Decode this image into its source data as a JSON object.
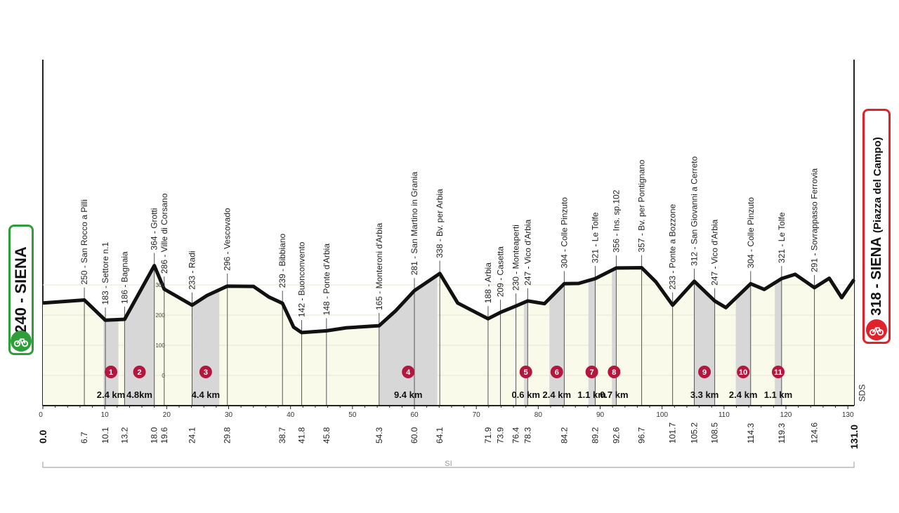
{
  "start": {
    "label": "240 - SIENA"
  },
  "finish": {
    "label": "318 - SIENA",
    "sub": "(Piazza del Campo)"
  },
  "footer": {
    "label": "SI",
    "sds": "SDS"
  },
  "chart_data": {
    "type": "area",
    "xlabel": "",
    "ylabel": "",
    "xlim": [
      0,
      131
    ],
    "x_ticks": [
      0,
      10,
      20,
      30,
      40,
      50,
      60,
      70,
      80,
      90,
      100,
      110,
      120,
      130
    ],
    "y_ticks": [
      0,
      100,
      200,
      300
    ],
    "total_km": "131.0",
    "start_km": "0.0",
    "points": [
      {
        "km": 0,
        "alt": 240
      },
      {
        "km": 6.7,
        "alt": 250
      },
      {
        "km": 10.1,
        "alt": 183
      },
      {
        "km": 13.2,
        "alt": 186
      },
      {
        "km": 18,
        "alt": 364
      },
      {
        "km": 19.6,
        "alt": 286
      },
      {
        "km": 24.1,
        "alt": 233
      },
      {
        "km": 26.5,
        "alt": 265
      },
      {
        "km": 29.8,
        "alt": 296
      },
      {
        "km": 34,
        "alt": 295
      },
      {
        "km": 36.5,
        "alt": 260
      },
      {
        "km": 38.7,
        "alt": 239
      },
      {
        "km": 40.5,
        "alt": 160
      },
      {
        "km": 41.8,
        "alt": 142
      },
      {
        "km": 45.8,
        "alt": 148
      },
      {
        "km": 49,
        "alt": 158
      },
      {
        "km": 54.3,
        "alt": 165
      },
      {
        "km": 57,
        "alt": 215
      },
      {
        "km": 60,
        "alt": 281
      },
      {
        "km": 64.1,
        "alt": 338
      },
      {
        "km": 67,
        "alt": 240
      },
      {
        "km": 71.9,
        "alt": 188
      },
      {
        "km": 73.9,
        "alt": 209
      },
      {
        "km": 76.4,
        "alt": 230
      },
      {
        "km": 78.3,
        "alt": 247
      },
      {
        "km": 81,
        "alt": 238
      },
      {
        "km": 84.2,
        "alt": 304
      },
      {
        "km": 86.5,
        "alt": 305
      },
      {
        "km": 89.2,
        "alt": 321
      },
      {
        "km": 92.6,
        "alt": 356
      },
      {
        "km": 96.7,
        "alt": 357
      },
      {
        "km": 99,
        "alt": 310
      },
      {
        "km": 101.7,
        "alt": 233
      },
      {
        "km": 105.2,
        "alt": 312
      },
      {
        "km": 108.5,
        "alt": 247
      },
      {
        "km": 110.3,
        "alt": 225
      },
      {
        "km": 114.3,
        "alt": 304
      },
      {
        "km": 116.5,
        "alt": 285
      },
      {
        "km": 119.3,
        "alt": 321
      },
      {
        "km": 121.5,
        "alt": 335
      },
      {
        "km": 124.6,
        "alt": 291
      },
      {
        "km": 127,
        "alt": 322
      },
      {
        "km": 129,
        "alt": 258
      },
      {
        "km": 131,
        "alt": 318
      }
    ],
    "waypoints": [
      {
        "km": 6.7,
        "km_label": "6.7",
        "text": "250 - San Rocco a Pilli"
      },
      {
        "km": 10.1,
        "km_label": "10.1",
        "text": "183 - Settore n.1"
      },
      {
        "km": 13.2,
        "km_label": "13.2",
        "text": "186 - Bagnaia"
      },
      {
        "km": 18.0,
        "km_label": "18.0",
        "text": "364 - Grotti"
      },
      {
        "km": 19.6,
        "km_label": "19.6",
        "text": "286 - Ville di Corsano"
      },
      {
        "km": 24.1,
        "km_label": "24.1",
        "text": "233 - Radi"
      },
      {
        "km": 29.8,
        "km_label": "29.8",
        "text": "296 - Vescovado"
      },
      {
        "km": 38.7,
        "km_label": "38.7",
        "text": "239 - Bibbiano"
      },
      {
        "km": 41.8,
        "km_label": "41.8",
        "text": "142 - Buonconvento"
      },
      {
        "km": 45.8,
        "km_label": "45.8",
        "text": "148 - Ponte d'Arbia"
      },
      {
        "km": 54.3,
        "km_label": "54.3",
        "text": "165 - Monteroni d'Arbia"
      },
      {
        "km": 60.0,
        "km_label": "60.0",
        "text": "281 - San Martino in Grania"
      },
      {
        "km": 64.1,
        "km_label": "64.1",
        "text": "338 - Bv. per Arbia"
      },
      {
        "km": 71.9,
        "km_label": "71.9",
        "text": "188 - Arbia"
      },
      {
        "km": 73.9,
        "km_label": "73.9",
        "text": "209 - Casetta"
      },
      {
        "km": 76.4,
        "km_label": "76.4",
        "text": "230 - Monteaperti"
      },
      {
        "km": 78.3,
        "km_label": "78.3",
        "text": "247 - Vico d'Arbia"
      },
      {
        "km": 84.2,
        "km_label": "84.2",
        "text": "304 - Colle Pinzuto"
      },
      {
        "km": 89.2,
        "km_label": "89.2",
        "text": "321 - Le Tolfe"
      },
      {
        "km": 92.6,
        "km_label": "92.6",
        "text": "356 - Ins. sp.102"
      },
      {
        "km": 96.7,
        "km_label": "96.7",
        "text": "357 - Bv. per Pontignano"
      },
      {
        "km": 101.7,
        "km_label": "101.7",
        "text": "233 - Ponte a Bozzone"
      },
      {
        "km": 105.2,
        "km_label": "105.2",
        "text": "312 - San Giovanni a Cerreto"
      },
      {
        "km": 108.5,
        "km_label": "108.5",
        "text": "247 - Vico d'Arbia"
      },
      {
        "km": 114.3,
        "km_label": "114.3",
        "text": "304 - Colle Pinzuto"
      },
      {
        "km": 119.3,
        "km_label": "119.3",
        "text": "321 - Le Tolfe"
      },
      {
        "km": 124.6,
        "km_label": "124.6",
        "text": "291 - Sovrappasso Ferrovia"
      }
    ],
    "sectors": [
      {
        "n": "1",
        "from": 9.8,
        "to": 12.2,
        "length": "2.4 km"
      },
      {
        "n": "2",
        "from": 13.2,
        "to": 18.0,
        "length": "4.8km"
      },
      {
        "n": "3",
        "from": 24.1,
        "to": 28.5,
        "length": "4.4 km"
      },
      {
        "n": "4",
        "from": 54.3,
        "to": 63.7,
        "length": "9.4 km"
      },
      {
        "n": "5",
        "from": 77.7,
        "to": 78.3,
        "length": "0.6 km"
      },
      {
        "n": "6",
        "from": 81.8,
        "to": 84.2,
        "length": "2.4 km"
      },
      {
        "n": "7",
        "from": 88.1,
        "to": 89.2,
        "length": "1.1 km"
      },
      {
        "n": "8",
        "from": 91.9,
        "to": 92.6,
        "length": "0.7 km"
      },
      {
        "n": "9",
        "from": 105.2,
        "to": 108.5,
        "length": "3.3 km"
      },
      {
        "n": "10",
        "from": 111.9,
        "to": 114.3,
        "length": "2.4 km"
      },
      {
        "n": "11",
        "from": 118.2,
        "to": 119.3,
        "length": "1.1 km"
      }
    ]
  }
}
